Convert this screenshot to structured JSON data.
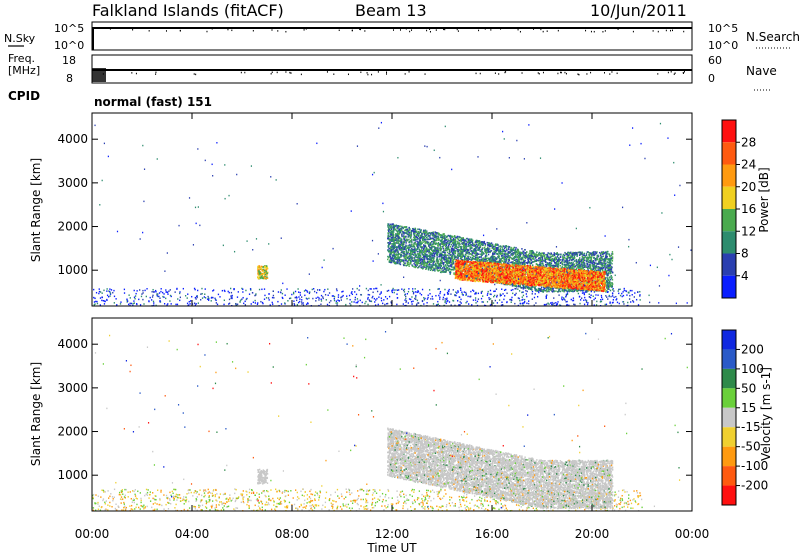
{
  "header": {
    "station": "Falkland Islands (fitACF)",
    "beam": "Beam 13",
    "date": "10/Jun/2011"
  },
  "top_panels": {
    "nsky_label": "N.Sky",
    "nsearch_label": "N.Search",
    "freq_label_1": "Freq.",
    "freq_label_2": "[MHz]",
    "nave_label": "Nave",
    "cpid_label": "CPID",
    "cpid_value": "normal (fast) 151",
    "left_ticks_nsky": [
      "10^5",
      "10^0"
    ],
    "right_ticks_nsearch": [
      "10^5",
      "10^0"
    ],
    "left_ticks_freq": [
      "18",
      "8"
    ],
    "right_ticks_nave": [
      "60",
      "0"
    ]
  },
  "x_axis": {
    "label": "Time UT",
    "ticks": [
      "00:00",
      "04:00",
      "08:00",
      "12:00",
      "16:00",
      "20:00",
      "00:00"
    ]
  },
  "chart_data": [
    {
      "type": "heatmap",
      "name": "power",
      "ylabel": "Slant Range [km]",
      "yticks": [
        1000,
        2000,
        3000,
        4000
      ],
      "ylim": [
        180,
        4600
      ],
      "xlim_hours": [
        0,
        24
      ],
      "colorbar_label": "Power [dB]",
      "colorbar_ticks": [
        "4",
        "8",
        "12",
        "16",
        "20",
        "24",
        "28"
      ],
      "colorbar_colors": [
        "#0a1eff",
        "#2a3fb0",
        "#2d8c6e",
        "#4aaa4e",
        "#f0d020",
        "#ff9a10",
        "#ff5a10",
        "#ff1010"
      ],
      "regions": [
        {
          "t": [
            11.8,
            20.8
          ],
          "range": [
            900,
            2000
          ],
          "level": "low"
        },
        {
          "t": [
            14.5,
            20.5
          ],
          "range": [
            600,
            1300
          ],
          "level": "high"
        },
        {
          "t": [
            6.5,
            7.0
          ],
          "range": [
            800,
            1100
          ],
          "level": "mid"
        }
      ]
    },
    {
      "type": "heatmap",
      "name": "velocity",
      "ylabel": "Slant Range [km]",
      "yticks": [
        1000,
        2000,
        3000,
        4000
      ],
      "ylim": [
        180,
        4600
      ],
      "xlim_hours": [
        0,
        24
      ],
      "colorbar_label": "Velocity [m s-1]",
      "colorbar_ticks": [
        "200",
        "100",
        "50",
        "15",
        "-15",
        "-50",
        "-100",
        "-200"
      ],
      "colorbar_colors": [
        "#1028e0",
        "#2a5ac8",
        "#2e8a4a",
        "#6ad03a",
        "#c8c8c8",
        "#f0d030",
        "#ff9a10",
        "#ff5a10",
        "#ff1010"
      ],
      "regions": [
        {
          "t": [
            11.8,
            20.8
          ],
          "range": [
            700,
            2000
          ],
          "level": "gray"
        },
        {
          "t": [
            6.5,
            7.0
          ],
          "range": [
            800,
            1200
          ],
          "level": "gray"
        }
      ]
    }
  ],
  "colors": {
    "axis": "#000000",
    "ground_scatter": "#b0b0b0"
  }
}
